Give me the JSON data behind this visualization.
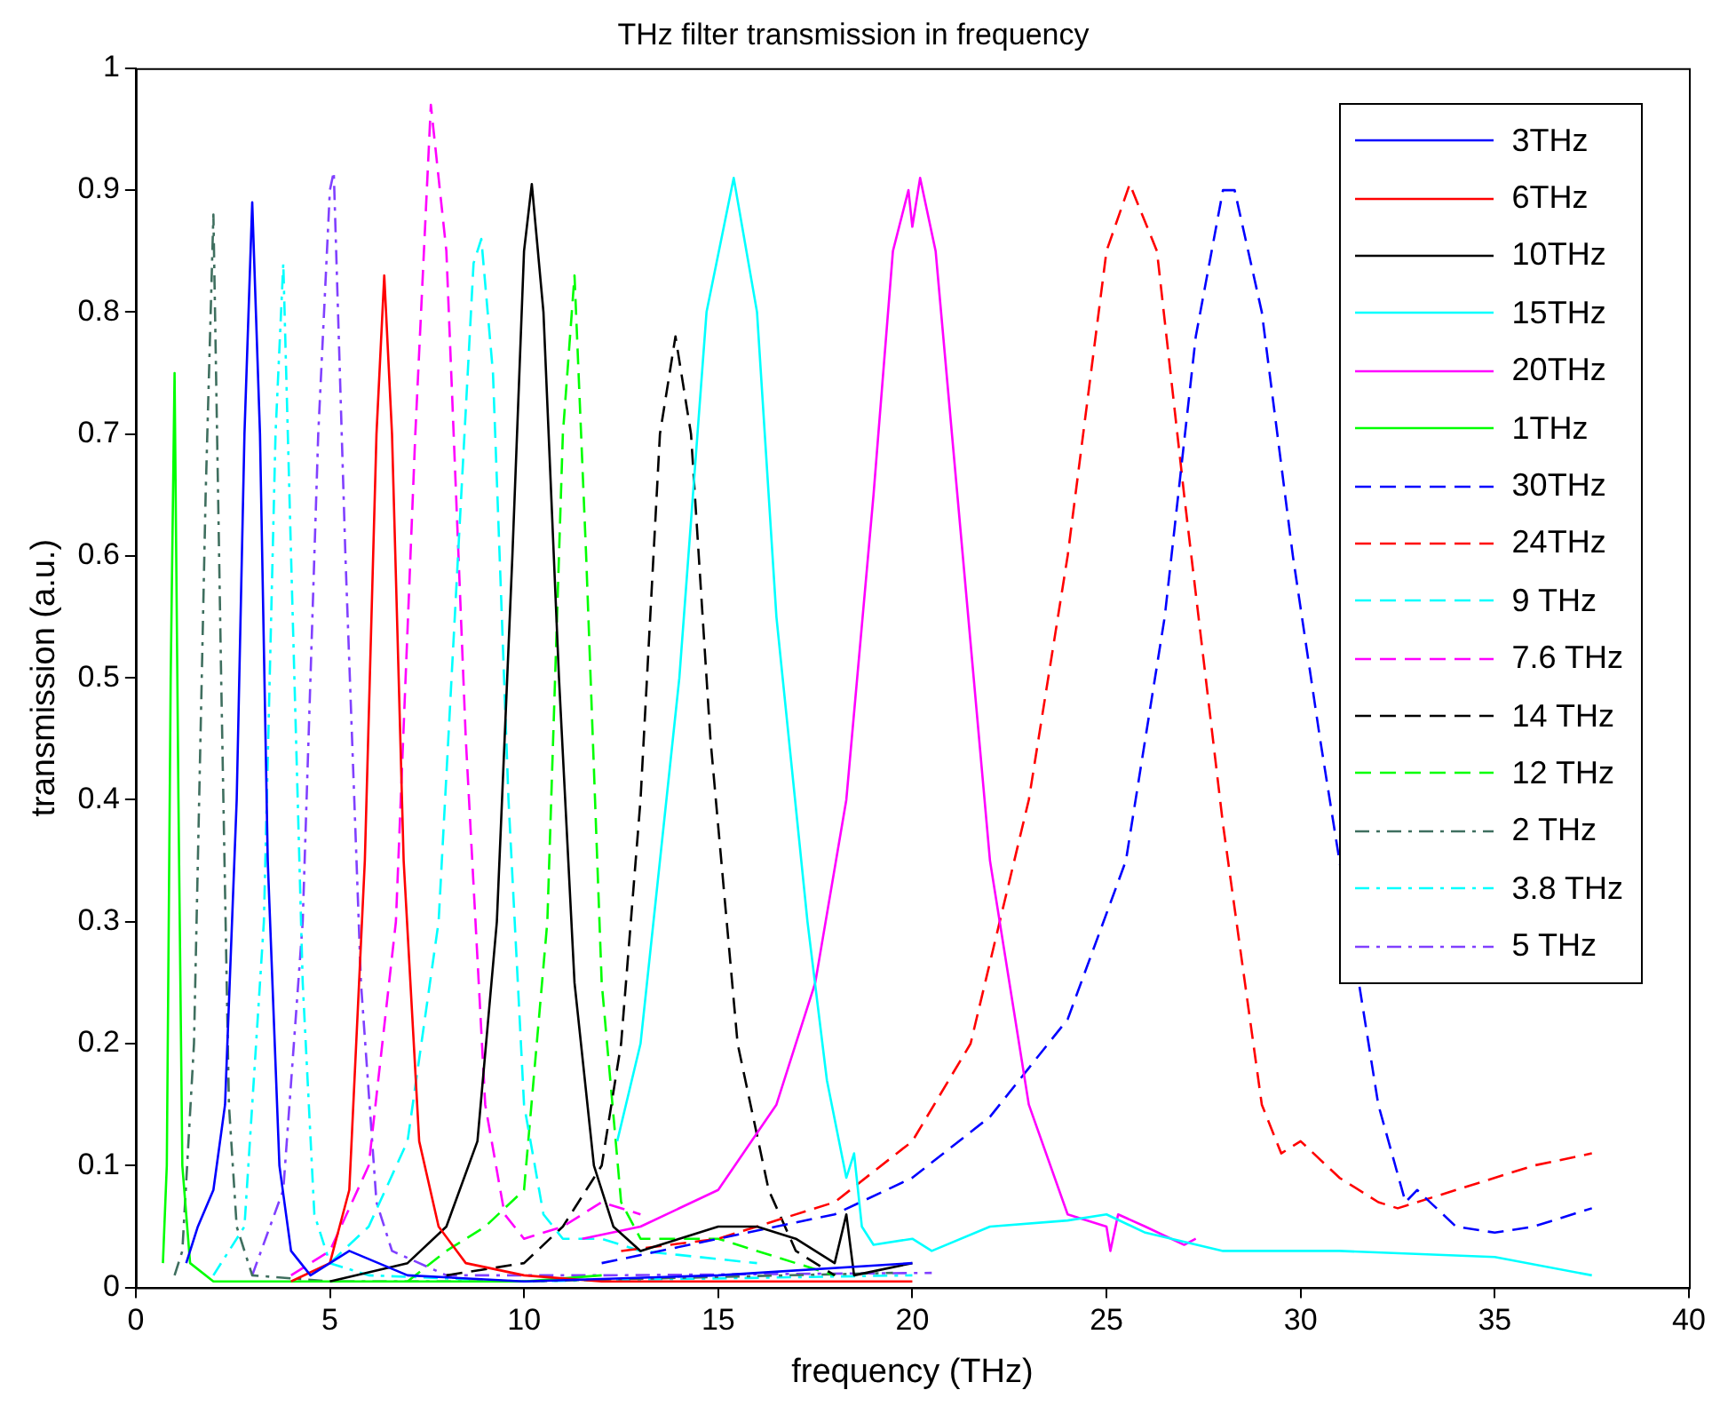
{
  "chart_data": {
    "type": "line",
    "title": "THz filter transmission in frequency",
    "xlabel": "frequency (THz)",
    "ylabel": "transmission (a.u.)",
    "xlim": [
      0,
      40
    ],
    "xticks": [
      0,
      5,
      10,
      15,
      20,
      25,
      30,
      35,
      40
    ],
    "ylim": [
      0,
      1
    ],
    "yticks": [
      0,
      0.1,
      0.2,
      0.3,
      0.4,
      0.5,
      0.6,
      0.7,
      0.8,
      0.9,
      1
    ],
    "legend": "top right",
    "marker": "none",
    "series": [
      {
        "name": "3THz",
        "color": "#0000ff",
        "line_style": "solid",
        "x": [
          1.3,
          1.6,
          2.0,
          2.3,
          2.6,
          2.8,
          3.0,
          3.2,
          3.4,
          3.7,
          4.0,
          4.5,
          5.5,
          7,
          10,
          15,
          20
        ],
        "values": [
          0.02,
          0.05,
          0.08,
          0.15,
          0.4,
          0.7,
          0.89,
          0.7,
          0.35,
          0.1,
          0.03,
          0.01,
          0.03,
          0.01,
          0.005,
          0.01,
          0.02
        ]
      },
      {
        "name": "6THz",
        "color": "#ff0000",
        "line_style": "solid",
        "x": [
          4,
          5,
          5.5,
          5.9,
          6.2,
          6.4,
          6.6,
          6.9,
          7.3,
          7.8,
          8.5,
          10,
          12,
          15,
          20
        ],
        "values": [
          0.005,
          0.02,
          0.08,
          0.35,
          0.7,
          0.83,
          0.7,
          0.35,
          0.12,
          0.05,
          0.02,
          0.01,
          0.005,
          0.005,
          0.005
        ]
      },
      {
        "name": "10THz",
        "color": "#000000",
        "line_style": "solid",
        "x": [
          5,
          7,
          8,
          8.8,
          9.3,
          9.7,
          10.0,
          10.2,
          10.5,
          10.9,
          11.3,
          11.8,
          12.3,
          13,
          14,
          15,
          16,
          17,
          18,
          18.3,
          18.5,
          20
        ],
        "values": [
          0.005,
          0.02,
          0.05,
          0.12,
          0.3,
          0.6,
          0.85,
          0.905,
          0.8,
          0.5,
          0.25,
          0.1,
          0.05,
          0.03,
          0.04,
          0.05,
          0.05,
          0.04,
          0.02,
          0.06,
          0.01,
          0.02
        ]
      },
      {
        "name": "15THz",
        "color": "#00ffff",
        "line_style": "solid",
        "x": [
          12.4,
          13,
          14,
          14.7,
          15.4,
          16,
          16.5,
          17.3,
          17.8,
          18.3,
          18.5,
          18.7,
          19,
          20,
          20.5,
          22,
          24,
          25,
          26,
          28,
          31,
          35,
          37.5
        ],
        "values": [
          0.12,
          0.2,
          0.5,
          0.8,
          0.91,
          0.8,
          0.55,
          0.3,
          0.17,
          0.09,
          0.11,
          0.05,
          0.035,
          0.04,
          0.03,
          0.05,
          0.055,
          0.06,
          0.045,
          0.03,
          0.03,
          0.025,
          0.01
        ]
      },
      {
        "name": "20THz",
        "color": "#ff00ff",
        "line_style": "solid",
        "x": [
          11.5,
          13,
          15,
          16.5,
          17.5,
          18.3,
          19,
          19.5,
          19.9,
          20.0,
          20.2,
          20.6,
          21.3,
          22,
          23,
          24,
          25,
          25.1,
          25.3,
          26,
          27,
          27.3
        ],
        "values": [
          0.04,
          0.05,
          0.08,
          0.15,
          0.25,
          0.4,
          0.65,
          0.85,
          0.9,
          0.87,
          0.91,
          0.85,
          0.6,
          0.35,
          0.15,
          0.06,
          0.05,
          0.03,
          0.06,
          0.05,
          0.035,
          0.04
        ]
      },
      {
        "name": "1THz",
        "color": "#00ff00",
        "line_style": "solid",
        "x": [
          0.7,
          0.8,
          0.9,
          1.0,
          1.1,
          1.2,
          1.4,
          2,
          5,
          10,
          12
        ],
        "values": [
          0.02,
          0.1,
          0.5,
          0.75,
          0.4,
          0.1,
          0.02,
          0.005,
          0.005,
          0.005,
          0.01
        ]
      },
      {
        "name": "30THz",
        "color": "#0000ff",
        "line_style": "dashed",
        "x": [
          12,
          15,
          18,
          20,
          22,
          24,
          25.5,
          26.5,
          27.3,
          28.0,
          28.3,
          29,
          29.8,
          30.5,
          31,
          32,
          32.7,
          33,
          34,
          35,
          36,
          37.5
        ],
        "values": [
          0.02,
          0.04,
          0.06,
          0.09,
          0.14,
          0.22,
          0.35,
          0.55,
          0.78,
          0.9,
          0.9,
          0.8,
          0.6,
          0.45,
          0.35,
          0.15,
          0.07,
          0.08,
          0.05,
          0.045,
          0.05,
          0.065
        ]
      },
      {
        "name": "24THz",
        "color": "#ff0000",
        "line_style": "dashed",
        "x": [
          12.5,
          15,
          18,
          20,
          21.5,
          23,
          24,
          25,
          25.6,
          26.3,
          27,
          28,
          29,
          29.5,
          30,
          31,
          32,
          32.5,
          34,
          36,
          37.5
        ],
        "values": [
          0.03,
          0.04,
          0.07,
          0.12,
          0.2,
          0.4,
          0.6,
          0.85,
          0.905,
          0.85,
          0.65,
          0.38,
          0.15,
          0.11,
          0.12,
          0.09,
          0.07,
          0.065,
          0.08,
          0.1,
          0.11
        ]
      },
      {
        "name": "9 THz",
        "color": "#00ffff",
        "line_style": "dashed",
        "x": [
          5,
          6,
          7,
          7.8,
          8.3,
          8.7,
          8.9,
          9.2,
          9.6,
          10,
          10.5,
          11,
          12,
          13,
          16
        ],
        "values": [
          0.02,
          0.05,
          0.12,
          0.3,
          0.6,
          0.84,
          0.86,
          0.75,
          0.4,
          0.15,
          0.06,
          0.04,
          0.04,
          0.03,
          0.02
        ]
      },
      {
        "name": "7.6 THz",
        "color": "#ff00ff",
        "line_style": "dashed",
        "x": [
          4,
          5,
          6,
          6.7,
          7.2,
          7.6,
          8,
          8.5,
          9,
          9.5,
          10,
          11,
          12,
          13
        ],
        "values": [
          0.01,
          0.03,
          0.1,
          0.3,
          0.7,
          0.97,
          0.85,
          0.45,
          0.15,
          0.06,
          0.04,
          0.05,
          0.07,
          0.06
        ]
      },
      {
        "name": "14 THz",
        "color": "#000000",
        "line_style": "dashed",
        "x": [
          8,
          10,
          11,
          12,
          12.5,
          13,
          13.5,
          13.9,
          14.3,
          14.8,
          15.5,
          16.3,
          17,
          18
        ],
        "values": [
          0.01,
          0.02,
          0.05,
          0.1,
          0.2,
          0.4,
          0.7,
          0.78,
          0.7,
          0.45,
          0.2,
          0.08,
          0.03,
          0.01
        ]
      },
      {
        "name": "12 THz",
        "color": "#00ff00",
        "line_style": "dashed",
        "x": [
          7,
          8,
          9,
          10,
          10.6,
          11,
          11.3,
          11.6,
          12,
          12.5,
          13,
          15,
          17,
          18
        ],
        "values": [
          0.005,
          0.03,
          0.05,
          0.08,
          0.3,
          0.7,
          0.83,
          0.6,
          0.25,
          0.07,
          0.04,
          0.04,
          0.02,
          0.01
        ]
      },
      {
        "name": "2 THz",
        "color": "#3f6f5f",
        "line_style": "dashdot",
        "x": [
          1.0,
          1.2,
          1.5,
          1.8,
          2.0,
          2.2,
          2.4,
          2.6,
          3,
          5,
          10,
          19.5
        ],
        "values": [
          0.01,
          0.03,
          0.2,
          0.65,
          0.88,
          0.5,
          0.15,
          0.05,
          0.01,
          0.005,
          0.005,
          0.012
        ]
      },
      {
        "name": "3.8 THz",
        "color": "#00ffff",
        "line_style": "dashdot",
        "x": [
          2,
          2.8,
          3.3,
          3.6,
          3.8,
          4.0,
          4.3,
          4.6,
          5,
          6,
          10,
          20
        ],
        "values": [
          0.01,
          0.05,
          0.3,
          0.7,
          0.84,
          0.6,
          0.25,
          0.06,
          0.02,
          0.01,
          0.005,
          0.01
        ]
      },
      {
        "name": "5 THz",
        "color": "#8040ff",
        "line_style": "dashdot",
        "x": [
          3,
          3.8,
          4.3,
          4.7,
          5.0,
          5.1,
          5.4,
          5.8,
          6.2,
          6.6,
          8,
          12,
          20.5
        ],
        "values": [
          0.01,
          0.08,
          0.3,
          0.7,
          0.9,
          0.915,
          0.6,
          0.25,
          0.07,
          0.03,
          0.01,
          0.01,
          0.012
        ]
      }
    ]
  }
}
